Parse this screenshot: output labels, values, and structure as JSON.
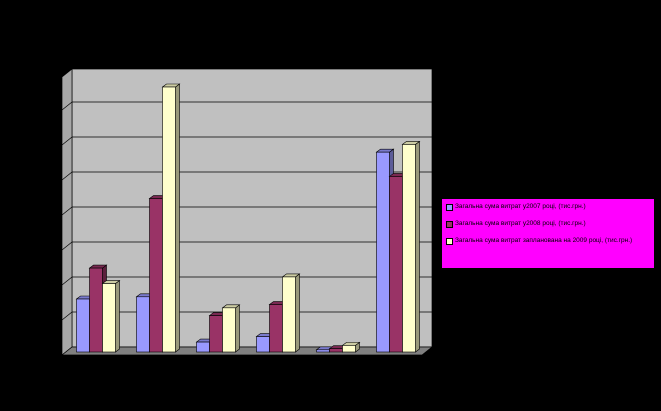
{
  "chart_data": {
    "type": "bar",
    "categories": [
      "",
      "",
      "",
      "",
      "",
      ""
    ],
    "series": [
      {
        "name": "Загальна сума витрат у2007 році, (тис.грн.)",
        "color": "#9999ff",
        "values": [
          48,
          50,
          9,
          14,
          2,
          181
        ]
      },
      {
        "name": "Загальна сума витрат у2008 році, (тис.грн.)",
        "color": "#993366",
        "values": [
          76,
          139,
          33,
          43,
          3,
          159
        ]
      },
      {
        "name": "Загальна сума витрат запланована на 2009 році, (тис.грн.)",
        "color": "#ffffcc",
        "values": [
          62,
          240,
          40,
          68,
          6,
          188
        ]
      }
    ],
    "title": "",
    "xlabel": "",
    "ylabel": "",
    "grid": true,
    "legend_position": "right",
    "plot_background": "#c0c0c0",
    "page_background": "#000000"
  },
  "legend": {
    "items": [
      "Загальна сума витрат у2007 році, (тис.грн.)",
      "Загальна сума витрат у2008 році, (тис.грн.)",
      "Загальна сума витрат запланована на 2009 році, (тис.грн.)"
    ]
  }
}
